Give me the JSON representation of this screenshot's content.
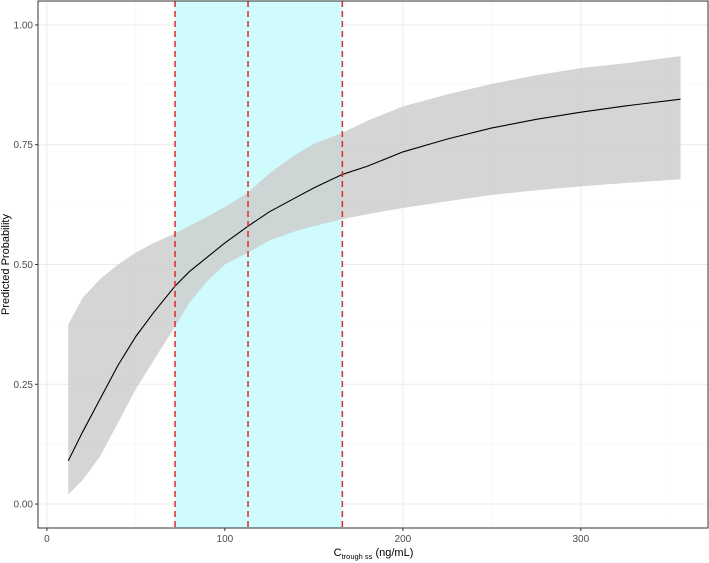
{
  "chart_data": {
    "type": "line",
    "xlabel_main": "C",
    "xlabel_sub": "trough ss",
    "xlabel_unit": " (ng/mL)",
    "ylabel": "Predicted Probability",
    "xlim": [
      -5,
      372
    ],
    "ylim": [
      -0.05,
      1.05
    ],
    "x_ticks": [
      0,
      100,
      200,
      300
    ],
    "x_tick_labels": [
      "0",
      "100",
      "200",
      "300"
    ],
    "y_ticks": [
      0.0,
      0.25,
      0.5,
      0.75,
      1.0
    ],
    "y_tick_labels": [
      "0.00",
      "0.25",
      "0.50",
      "0.75",
      "1.00"
    ],
    "grid": true,
    "series": [
      {
        "type": "line",
        "color": "#000000",
        "x": [
          12,
          20,
          30,
          40,
          50,
          60,
          72,
          80,
          90,
          100,
          113,
          125,
          140,
          150,
          166,
          180,
          200,
          225,
          250,
          275,
          300,
          325,
          356
        ],
        "y": [
          0.09,
          0.15,
          0.22,
          0.29,
          0.35,
          0.4,
          0.455,
          0.485,
          0.515,
          0.545,
          0.58,
          0.61,
          0.64,
          0.66,
          0.688,
          0.705,
          0.735,
          0.762,
          0.785,
          0.803,
          0.818,
          0.831,
          0.845
        ]
      }
    ],
    "confidence_band": {
      "color": "#cccccc",
      "x": [
        12,
        20,
        30,
        40,
        50,
        60,
        72,
        80,
        90,
        100,
        113,
        125,
        140,
        150,
        166,
        180,
        200,
        225,
        250,
        275,
        300,
        325,
        356
      ],
      "lower": [
        0.02,
        0.05,
        0.1,
        0.17,
        0.24,
        0.3,
        0.37,
        0.42,
        0.465,
        0.5,
        0.525,
        0.55,
        0.57,
        0.58,
        0.595,
        0.605,
        0.618,
        0.632,
        0.645,
        0.655,
        0.663,
        0.67,
        0.678
      ],
      "upper": [
        0.375,
        0.43,
        0.47,
        0.5,
        0.525,
        0.545,
        0.565,
        0.58,
        0.6,
        0.62,
        0.65,
        0.69,
        0.73,
        0.752,
        0.775,
        0.8,
        0.83,
        0.855,
        0.877,
        0.895,
        0.91,
        0.92,
        0.935
      ]
    },
    "shaded_region": {
      "x_range": [
        72,
        166
      ],
      "color": "#d0fbfd"
    },
    "reference_lines": [
      {
        "x": 72,
        "color": "#e0292b",
        "style": "dashed"
      },
      {
        "x": 113,
        "color": "#e0292b",
        "style": "dashed"
      },
      {
        "x": 166,
        "color": "#e0292b",
        "style": "dashed"
      }
    ],
    "colors": {
      "background": "#ffffff",
      "panel_border": "#333333",
      "grid_major": "#ebebeb",
      "grid_minor": "#f5f5f5"
    }
  }
}
